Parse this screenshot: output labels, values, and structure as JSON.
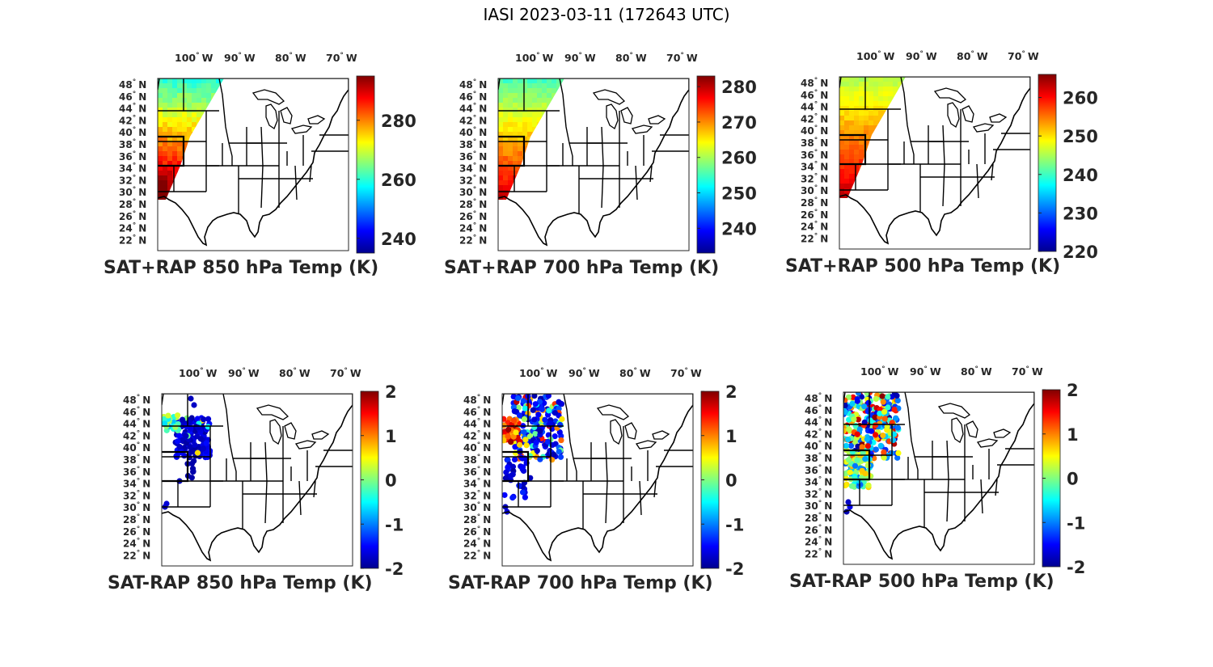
{
  "title": "IASI 2023-03-11 (172643 UTC)",
  "lon_labels": [
    "100",
    "90",
    "80",
    "70"
  ],
  "lon_hemisphere": "W",
  "lat_labels": [
    "48",
    "46",
    "44",
    "42",
    "40",
    "38",
    "36",
    "34",
    "32",
    "30",
    "28",
    "26",
    "24",
    "22"
  ],
  "lat_hemisphere": "N",
  "degree_symbol": "°",
  "colormap": "jet",
  "colormap_stops": [
    "#00008f",
    "#0000ff",
    "#0080ff",
    "#00ffff",
    "#80ff80",
    "#ffff00",
    "#ff8000",
    "#ff0000",
    "#800000"
  ],
  "map_style": {
    "land": "#ffffff",
    "boundary": "#000000"
  },
  "panels": [
    {
      "id": "sat-rap-850-sum",
      "title": "SAT+RAP 850 hPa Temp (K)",
      "colorbar_ticks": [
        "280",
        "260",
        "240"
      ],
      "colorbar_range": [
        235,
        295
      ]
    },
    {
      "id": "sat-rap-700-sum",
      "title": "SAT+RAP 700 hPa Temp (K)",
      "colorbar_ticks": [
        "280",
        "270",
        "260",
        "250",
        "240"
      ],
      "colorbar_range": [
        233,
        283
      ]
    },
    {
      "id": "sat-rap-500-sum",
      "title": "SAT+RAP 500 hPa Temp (K)",
      "colorbar_ticks": [
        "260",
        "250",
        "240",
        "230",
        "220"
      ],
      "colorbar_range": [
        220,
        266
      ]
    },
    {
      "id": "sat-rap-850-diff",
      "title": "SAT-RAP 850 hPa Temp (K)",
      "colorbar_ticks": [
        "2",
        "1",
        "0",
        "-1",
        "-2"
      ],
      "colorbar_range": [
        -2,
        2
      ]
    },
    {
      "id": "sat-rap-700-diff",
      "title": "SAT-RAP 700 hPa Temp (K)",
      "colorbar_ticks": [
        "2",
        "1",
        "0",
        "-1",
        "-2"
      ],
      "colorbar_range": [
        -2,
        2
      ]
    },
    {
      "id": "sat-rap-500-diff",
      "title": "SAT-RAP 500 hPa Temp (K)",
      "colorbar_ticks": [
        "2",
        "1",
        "0",
        "-1",
        "-2"
      ],
      "colorbar_range": [
        -2,
        2
      ]
    }
  ]
}
